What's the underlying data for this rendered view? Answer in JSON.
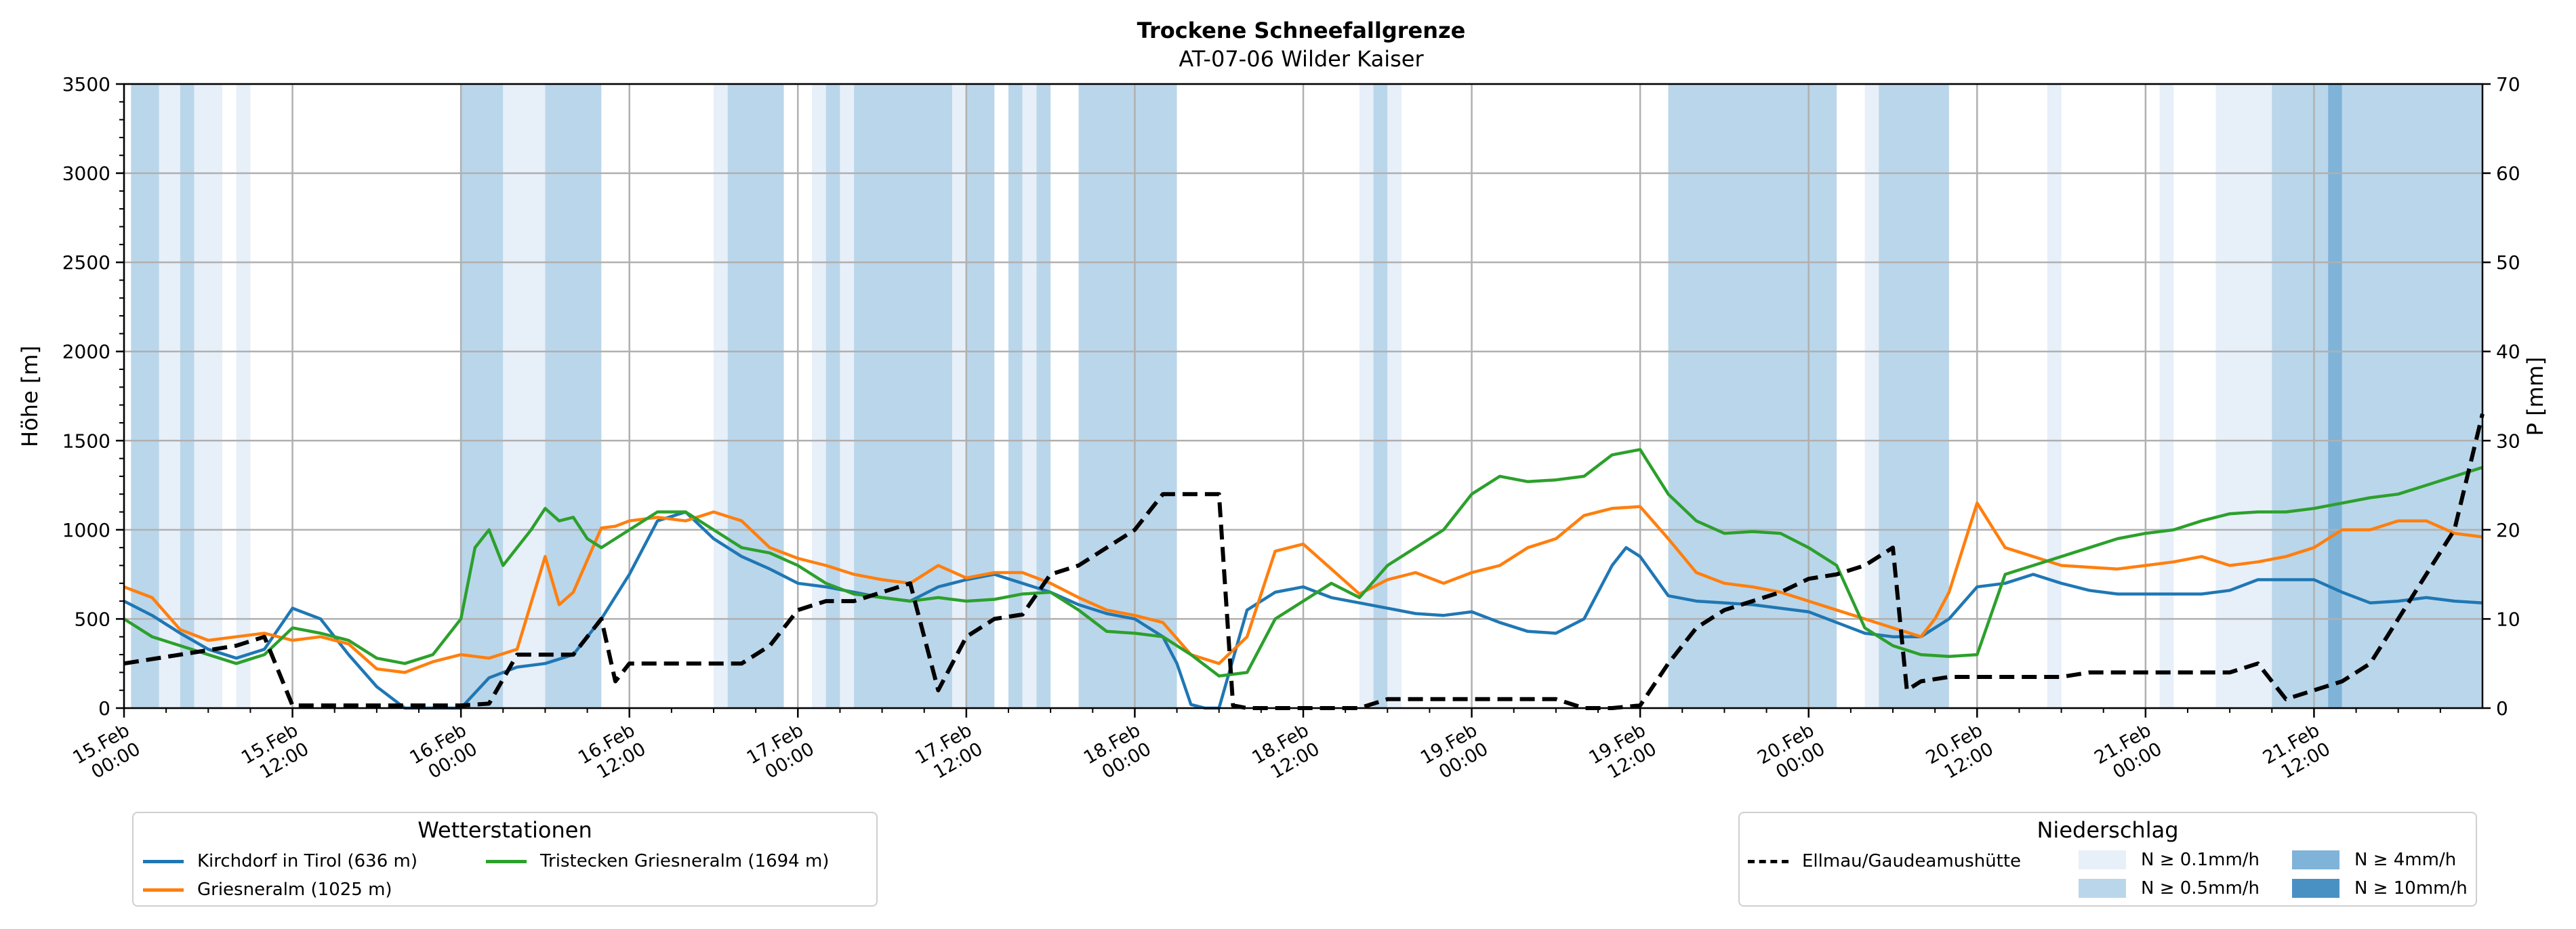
{
  "chart_data": {
    "type": "line",
    "title": "Trockene Schneefallgrenze",
    "subtitle": "AT-07-06 Wilder Kaiser",
    "ylabel": "Höhe [m]",
    "ylabel_right": "P [mm]",
    "ylim": [
      0,
      3500
    ],
    "ylim_right": [
      0,
      70
    ],
    "yticks": [
      "0",
      "500",
      "1000",
      "1500",
      "2000",
      "2500",
      "3000",
      "3500"
    ],
    "yticks_right": [
      "0",
      "10",
      "20",
      "30",
      "40",
      "50",
      "60",
      "70"
    ],
    "x_hours": [
      0,
      168
    ],
    "x_ticks": [
      {
        "hour": 0,
        "line1": "15.Feb",
        "line2": "00:00"
      },
      {
        "hour": 12,
        "line1": "15.Feb",
        "line2": "12:00"
      },
      {
        "hour": 24,
        "line1": "16.Feb",
        "line2": "00:00"
      },
      {
        "hour": 36,
        "line1": "16.Feb",
        "line2": "12:00"
      },
      {
        "hour": 48,
        "line1": "17.Feb",
        "line2": "00:00"
      },
      {
        "hour": 60,
        "line1": "17.Feb",
        "line2": "12:00"
      },
      {
        "hour": 72,
        "line1": "18.Feb",
        "line2": "00:00"
      },
      {
        "hour": 84,
        "line1": "18.Feb",
        "line2": "12:00"
      },
      {
        "hour": 96,
        "line1": "19.Feb",
        "line2": "00:00"
      },
      {
        "hour": 108,
        "line1": "19.Feb",
        "line2": "12:00"
      },
      {
        "hour": 120,
        "line1": "20.Feb",
        "line2": "00:00"
      },
      {
        "hour": 132,
        "line1": "20.Feb",
        "line2": "12:00"
      },
      {
        "hour": 144,
        "line1": "21.Feb",
        "line2": "00:00"
      },
      {
        "hour": 156,
        "line1": "21.Feb",
        "line2": "12:00"
      }
    ],
    "grid": true,
    "legend_stations": {
      "title": "Wetterstationen",
      "placement": "bottom-left",
      "entries": [
        "Kirchdorf in Tirol (636 m)",
        "Tristecken Griesneralm  (1694 m)",
        "Griesneralm (1025 m)"
      ]
    },
    "legend_precip": {
      "title": "Niederschlag",
      "placement": "bottom-right",
      "line_label": "Ellmau/Gaudeamushütte",
      "levels": [
        {
          "label": "N ≥ 0.1mm/h",
          "color": "#e7eff9"
        },
        {
          "label": "N ≥ 0.5mm/h",
          "color": "#bad6ea"
        },
        {
          "label": "N ≥ 4mm/h",
          "color": "#7fb3d8"
        },
        {
          "label": "N ≥ 10mm/h",
          "color": "#4a91c3"
        }
      ]
    },
    "precip_bands": [
      {
        "x0": 0.5,
        "x1": 2.5,
        "level": 1
      },
      {
        "x0": 2.5,
        "x1": 4,
        "level": 0
      },
      {
        "x0": 4,
        "x1": 5,
        "level": 1
      },
      {
        "x0": 5,
        "x1": 7,
        "level": 0
      },
      {
        "x0": 8,
        "x1": 9,
        "level": 0
      },
      {
        "x0": 24,
        "x1": 27,
        "level": 1
      },
      {
        "x0": 27,
        "x1": 30,
        "level": 0
      },
      {
        "x0": 30,
        "x1": 34,
        "level": 1
      },
      {
        "x0": 42,
        "x1": 43,
        "level": 0
      },
      {
        "x0": 43,
        "x1": 47,
        "level": 1
      },
      {
        "x0": 49,
        "x1": 50,
        "level": 0
      },
      {
        "x0": 50,
        "x1": 51,
        "level": 1
      },
      {
        "x0": 51,
        "x1": 52,
        "level": 0
      },
      {
        "x0": 52,
        "x1": 59,
        "level": 1
      },
      {
        "x0": 59,
        "x1": 60,
        "level": 0
      },
      {
        "x0": 60,
        "x1": 62,
        "level": 1
      },
      {
        "x0": 63,
        "x1": 64,
        "level": 1
      },
      {
        "x0": 64,
        "x1": 65,
        "level": 0
      },
      {
        "x0": 65,
        "x1": 66,
        "level": 1
      },
      {
        "x0": 68,
        "x1": 75,
        "level": 1
      },
      {
        "x0": 88,
        "x1": 89,
        "level": 0
      },
      {
        "x0": 89,
        "x1": 90,
        "level": 1
      },
      {
        "x0": 90,
        "x1": 91,
        "level": 0
      },
      {
        "x0": 110,
        "x1": 122,
        "level": 1
      },
      {
        "x0": 124,
        "x1": 125,
        "level": 0
      },
      {
        "x0": 125,
        "x1": 130,
        "level": 1
      },
      {
        "x0": 137,
        "x1": 138,
        "level": 0
      },
      {
        "x0": 145,
        "x1": 146,
        "level": 0
      },
      {
        "x0": 149,
        "x1": 153,
        "level": 0
      },
      {
        "x0": 153,
        "x1": 157,
        "level": 1
      },
      {
        "x0": 157,
        "x1": 158,
        "level": 2
      },
      {
        "x0": 158,
        "x1": 168,
        "level": 1
      }
    ],
    "series": [
      {
        "name": "Kirchdorf in Tirol (636 m)",
        "color": "#1f77b4",
        "axis": "left",
        "x": [
          0,
          2,
          4,
          6,
          8,
          10,
          12,
          14,
          16,
          18,
          20,
          22,
          24,
          26,
          28,
          30,
          32,
          34,
          36,
          38,
          40,
          42,
          44,
          46,
          48,
          50,
          52,
          54,
          56,
          58,
          60,
          62,
          64,
          66,
          68,
          70,
          72,
          74,
          75,
          76,
          77,
          78,
          80,
          82,
          84,
          86,
          88,
          90,
          92,
          94,
          96,
          98,
          100,
          102,
          104,
          106,
          107,
          108,
          110,
          112,
          114,
          116,
          118,
          120,
          122,
          124,
          126,
          128,
          130,
          132,
          134,
          136,
          138,
          140,
          142,
          144,
          146,
          148,
          150,
          152,
          154,
          156,
          158,
          160,
          162,
          164,
          166,
          168
        ],
        "y": [
          600,
          520,
          420,
          330,
          280,
          330,
          560,
          500,
          300,
          120,
          0,
          0,
          0,
          170,
          230,
          250,
          300,
          500,
          750,
          1050,
          1100,
          950,
          850,
          780,
          700,
          680,
          650,
          620,
          600,
          680,
          720,
          750,
          700,
          650,
          580,
          530,
          500,
          400,
          250,
          20,
          0,
          0,
          550,
          650,
          680,
          620,
          590,
          560,
          530,
          520,
          540,
          480,
          430,
          420,
          500,
          800,
          900,
          850,
          630,
          600,
          590,
          580,
          560,
          540,
          480,
          420,
          400,
          400,
          500,
          680,
          700,
          750,
          700,
          660,
          640,
          640,
          640,
          640,
          660,
          720,
          720,
          720,
          650,
          590,
          600,
          620,
          600,
          590
        ]
      },
      {
        "name": "Griesneralm (1025 m)",
        "color": "#ff7f0e",
        "axis": "left",
        "x": [
          0,
          2,
          4,
          6,
          8,
          10,
          12,
          14,
          16,
          18,
          20,
          22,
          24,
          26,
          28,
          30,
          31,
          32,
          34,
          35,
          36,
          38,
          40,
          42,
          44,
          46,
          48,
          50,
          52,
          54,
          56,
          58,
          60,
          62,
          64,
          66,
          68,
          70,
          72,
          74,
          76,
          78,
          80,
          82,
          84,
          86,
          88,
          90,
          92,
          94,
          96,
          98,
          100,
          102,
          104,
          106,
          108,
          110,
          112,
          114,
          116,
          118,
          120,
          122,
          124,
          126,
          128,
          129,
          130,
          132,
          134,
          136,
          138,
          140,
          142,
          144,
          146,
          148,
          150,
          152,
          154,
          156,
          158,
          160,
          162,
          164,
          166,
          168
        ],
        "y": [
          680,
          620,
          440,
          380,
          400,
          420,
          380,
          400,
          360,
          220,
          200,
          260,
          300,
          280,
          330,
          850,
          580,
          650,
          1010,
          1020,
          1050,
          1070,
          1050,
          1100,
          1050,
          900,
          840,
          800,
          750,
          720,
          700,
          800,
          730,
          760,
          760,
          700,
          620,
          550,
          520,
          480,
          300,
          250,
          400,
          880,
          920,
          780,
          640,
          720,
          760,
          700,
          760,
          800,
          900,
          950,
          1080,
          1120,
          1130,
          950,
          760,
          700,
          680,
          650,
          600,
          550,
          500,
          450,
          400,
          500,
          650,
          1150,
          900,
          850,
          800,
          790,
          780,
          800,
          820,
          850,
          800,
          820,
          850,
          900,
          1000,
          1000,
          1050,
          1050,
          980,
          960
        ]
      },
      {
        "name": "Tristecken Griesneralm  (1694 m)",
        "color": "#2ca02c",
        "axis": "left",
        "x": [
          0,
          2,
          4,
          6,
          8,
          10,
          12,
          14,
          16,
          18,
          20,
          22,
          24,
          25,
          26,
          27,
          28,
          29,
          30,
          31,
          32,
          33,
          34,
          36,
          38,
          40,
          42,
          44,
          46,
          48,
          50,
          52,
          54,
          56,
          58,
          60,
          62,
          64,
          66,
          68,
          70,
          72,
          74,
          76,
          78,
          80,
          82,
          84,
          86,
          88,
          90,
          92,
          94,
          96,
          98,
          100,
          102,
          104,
          106,
          108,
          110,
          112,
          114,
          116,
          118,
          120,
          122,
          124,
          126,
          128,
          130,
          132,
          134,
          136,
          138,
          140,
          142,
          144,
          146,
          148,
          150,
          152,
          154,
          156,
          158,
          160,
          162,
          164,
          166,
          168
        ],
        "y": [
          500,
          400,
          350,
          300,
          250,
          300,
          450,
          420,
          380,
          280,
          250,
          300,
          500,
          900,
          1000,
          800,
          900,
          1000,
          1120,
          1050,
          1070,
          950,
          900,
          1000,
          1100,
          1100,
          1000,
          900,
          870,
          800,
          700,
          640,
          620,
          600,
          620,
          600,
          610,
          640,
          650,
          550,
          430,
          420,
          400,
          300,
          180,
          200,
          500,
          600,
          700,
          620,
          800,
          900,
          1000,
          1200,
          1300,
          1270,
          1280,
          1300,
          1420,
          1450,
          1200,
          1050,
          980,
          990,
          980,
          900,
          800,
          450,
          350,
          300,
          290,
          300,
          750,
          800,
          850,
          900,
          950,
          980,
          1000,
          1050,
          1090,
          1100,
          1100,
          1120,
          1150,
          1180,
          1200,
          1250,
          1300,
          1350
        ]
      },
      {
        "name": "Ellmau/Gaudeamushütte",
        "color": "#000000",
        "dashed": true,
        "axis": "right",
        "x": [
          0,
          4,
          8,
          10,
          12,
          14,
          20,
          24,
          26,
          28,
          30,
          32,
          34,
          35,
          36,
          38,
          40,
          42,
          44,
          46,
          48,
          50,
          52,
          54,
          56,
          58,
          60,
          62,
          64,
          66,
          68,
          70,
          72,
          74,
          76,
          78,
          79,
          80,
          82,
          84,
          88,
          90,
          92,
          94,
          96,
          100,
          102,
          104,
          106,
          108,
          110,
          112,
          114,
          116,
          118,
          120,
          122,
          124,
          126,
          127,
          128,
          130,
          132,
          134,
          136,
          138,
          140,
          142,
          144,
          146,
          148,
          150,
          152,
          154,
          156,
          158,
          160,
          162,
          164,
          166,
          168
        ],
        "y": [
          5,
          6,
          7,
          8,
          0.3,
          0.3,
          0.3,
          0.3,
          0.5,
          6,
          6,
          6,
          10,
          3,
          5,
          5,
          5,
          5,
          5,
          7,
          11,
          12,
          12,
          13,
          14,
          2,
          8,
          10,
          10.5,
          15,
          16,
          18,
          20,
          24,
          24,
          24,
          0.3,
          0,
          0,
          0,
          0,
          1,
          1,
          1,
          1,
          1,
          1,
          0,
          0,
          0.3,
          5,
          9,
          11,
          12,
          13,
          14.5,
          15,
          16,
          18,
          2,
          3,
          3.5,
          3.5,
          3.5,
          3.5,
          3.5,
          4,
          4,
          4,
          4,
          4,
          4,
          5,
          1,
          2,
          3,
          5,
          10,
          15,
          20,
          33
        ]
      }
    ]
  }
}
